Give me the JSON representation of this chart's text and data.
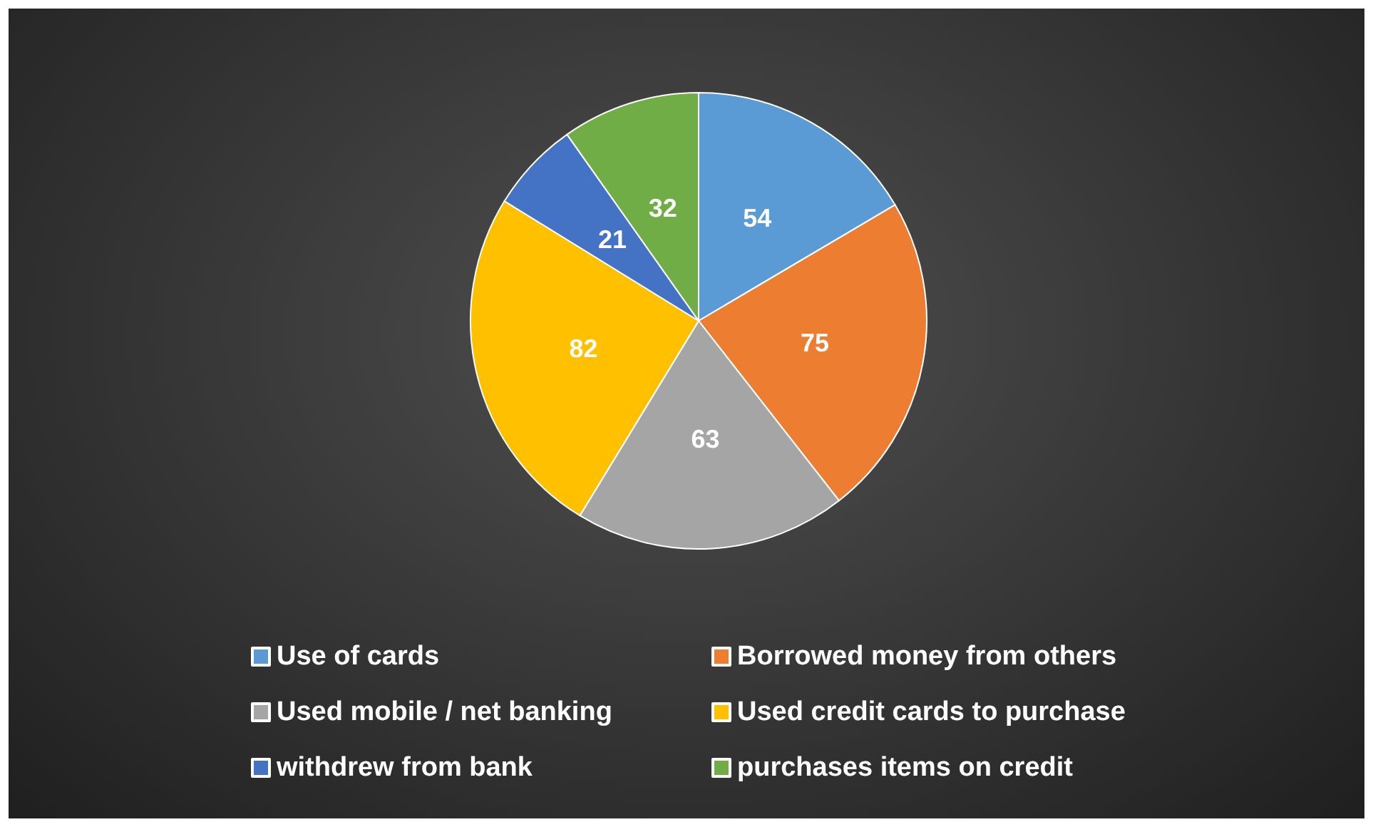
{
  "chart_data": {
    "type": "pie",
    "categories": [
      "Use of cards",
      "Borrowed money from others",
      "Used mobile / net banking",
      "Used credit cards to purchase",
      "withdrew from bank",
      "purchases items on credit"
    ],
    "values": [
      54,
      75,
      63,
      82,
      21,
      32
    ],
    "colors": [
      "#5b9bd5",
      "#ed7d31",
      "#a5a5a5",
      "#ffc000",
      "#4472c4",
      "#70ad47"
    ],
    "data_labels": true,
    "legend": "bottom"
  }
}
